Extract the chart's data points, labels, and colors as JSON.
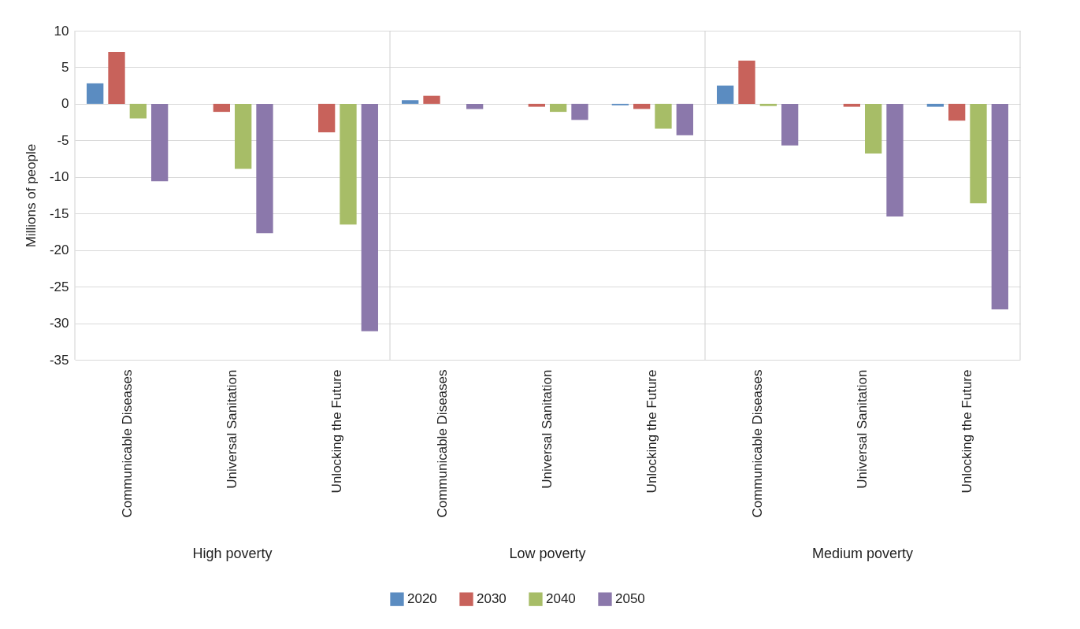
{
  "chart_data": {
    "type": "bar",
    "ylabel": "Millions of people",
    "categories": [
      "Communicable Diseases",
      "Universal Sanitation",
      "Unlocking the Future",
      "Communicable Diseases",
      "Universal Sanitation",
      "Unlocking the Future",
      "Communicable Diseases",
      "Universal Sanitation",
      "Unlocking the Future"
    ],
    "series": [
      {
        "name": "2020",
        "color": "#5b8cc1",
        "values": [
          2.8,
          0,
          0,
          0.5,
          0,
          -0.2,
          2.5,
          0,
          -0.4
        ]
      },
      {
        "name": "2030",
        "color": "#c8625b",
        "values": [
          7.1,
          -1.1,
          -3.9,
          1.1,
          -0.4,
          -0.7,
          5.9,
          -0.4,
          -2.3
        ]
      },
      {
        "name": "2040",
        "color": "#a7bd67",
        "values": [
          -2.0,
          -8.9,
          -16.5,
          0,
          -1.1,
          -3.4,
          -0.3,
          -6.8,
          -13.6
        ]
      },
      {
        "name": "2050",
        "color": "#8b78ab",
        "values": [
          -10.6,
          -17.7,
          -31.1,
          -0.7,
          -2.2,
          -4.3,
          -5.7,
          -15.4,
          -28.1
        ]
      }
    ],
    "annotations": [
      "High poverty",
      "Low poverty",
      "Medium poverty"
    ],
    "ylim": [
      -35,
      10
    ],
    "yticks": [
      10,
      5,
      0,
      -5,
      -10,
      -15,
      -20,
      -25,
      -30,
      -35
    ],
    "grid": true,
    "legend": "bottom"
  }
}
